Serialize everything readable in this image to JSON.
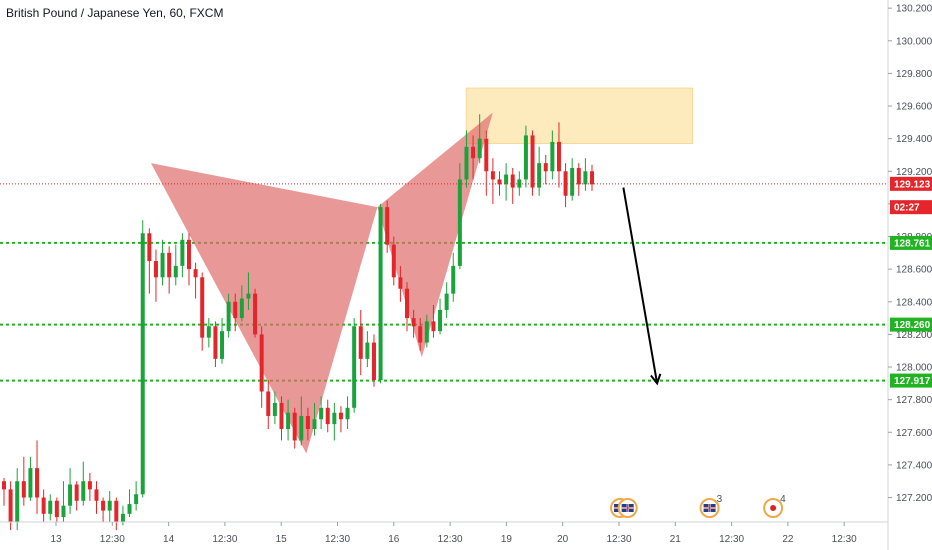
{
  "header": {
    "title": "British Pound / Japanese Yen, 60, FXCM"
  },
  "colors": {
    "up": "#1aa33b",
    "down": "#e4262b",
    "pattern": "#e06c6c",
    "supply_zone": "#fde9b8",
    "level_line": "#22b322",
    "price_line": "#e4262b",
    "arrow": "#000000"
  },
  "chart_data": {
    "type": "candlestick",
    "title": "British Pound / Japanese Yen, 60, FXCM",
    "ylim": [
      127.05,
      130.25
    ],
    "y_ticks": [
      "130.200",
      "130.000",
      "129.800",
      "129.600",
      "129.400",
      "129.200",
      "129.000",
      "128.800",
      "128.600",
      "128.400",
      "128.200",
      "128.000",
      "127.800",
      "127.600",
      "127.400",
      "127.200"
    ],
    "x_ticks": [
      "13",
      "12:30",
      "14",
      "12:30",
      "15",
      "12:30",
      "16",
      "12:30",
      "19",
      "20",
      "12:30",
      "21",
      "12:30",
      "22",
      "12:30"
    ],
    "price_tags": [
      {
        "label": "129.123",
        "value": 129.123,
        "color": "#e4262b"
      },
      {
        "label": "02:27",
        "value": 128.98,
        "color": "#e4262b"
      },
      {
        "label": "128.761",
        "value": 128.761,
        "color": "#22b322"
      },
      {
        "label": "128.260",
        "value": 128.26,
        "color": "#22b322"
      },
      {
        "label": "127.917",
        "value": 127.917,
        "color": "#22b322"
      }
    ],
    "levels": [
      128.761,
      128.26,
      127.917
    ],
    "current_price": 129.123,
    "pattern": {
      "name": "bat",
      "points": [
        [
          0.17,
          129.25
        ],
        [
          0.345,
          127.47
        ],
        [
          0.425,
          128.98
        ],
        [
          0.475,
          128.06
        ],
        [
          0.555,
          129.56
        ]
      ]
    },
    "supply_zone": {
      "x": [
        0.525,
        0.78
      ],
      "y": [
        129.37,
        129.71
      ]
    },
    "arrow": {
      "from": [
        0.702,
        129.1
      ],
      "to": [
        0.74,
        127.9
      ]
    },
    "calendar_events": [
      {
        "icon": "uk-flag",
        "x": 0.81
      },
      {
        "icon": "uk-flag",
        "x": 0.82
      },
      {
        "icon": "uk-flag",
        "x": 0.927,
        "count": "3"
      },
      {
        "icon": "jp-flag",
        "x": 1.01,
        "count": "4"
      }
    ],
    "candles": [
      [
        127.3,
        127.25,
        127.32,
        127.15
      ],
      [
        127.25,
        127.05,
        127.3,
        127.0
      ],
      [
        127.05,
        127.3,
        127.38,
        127.0
      ],
      [
        127.3,
        127.2,
        127.45,
        127.15
      ],
      [
        127.2,
        127.38,
        127.45,
        127.18
      ],
      [
        127.38,
        127.2,
        127.55,
        127.1
      ],
      [
        127.2,
        127.1,
        127.25,
        127.05
      ],
      [
        127.1,
        127.18,
        127.22,
        127.06
      ],
      [
        127.18,
        127.08,
        127.2,
        127.05
      ],
      [
        127.08,
        127.15,
        127.3,
        127.05
      ],
      [
        127.15,
        127.28,
        127.38,
        127.1
      ],
      [
        127.28,
        127.18,
        127.3,
        127.12
      ],
      [
        127.18,
        127.3,
        127.42,
        127.15
      ],
      [
        127.3,
        127.25,
        127.35,
        127.18
      ],
      [
        127.25,
        127.18,
        127.3,
        127.1
      ],
      [
        127.18,
        127.12,
        127.2,
        127.05
      ],
      [
        127.12,
        127.18,
        127.24,
        127.05
      ],
      [
        127.18,
        127.05,
        127.2,
        127.0
      ],
      [
        127.05,
        127.1,
        127.15,
        127.03
      ],
      [
        127.1,
        127.16,
        127.25,
        127.08
      ],
      [
        127.16,
        127.22,
        127.3,
        127.12
      ],
      [
        127.22,
        128.82,
        128.9,
        127.2
      ],
      [
        128.82,
        128.65,
        128.85,
        128.45
      ],
      [
        128.65,
        128.55,
        128.72,
        128.4
      ],
      [
        128.55,
        128.7,
        128.78,
        128.5
      ],
      [
        128.7,
        128.55,
        128.74,
        128.45
      ],
      [
        128.55,
        128.62,
        128.75,
        128.5
      ],
      [
        128.62,
        128.78,
        128.82,
        128.55
      ],
      [
        128.78,
        128.6,
        128.82,
        128.5
      ],
      [
        128.6,
        128.55,
        128.64,
        128.42
      ],
      [
        128.55,
        128.18,
        128.58,
        128.1
      ],
      [
        128.18,
        128.25,
        128.3,
        128.12
      ],
      [
        128.25,
        128.05,
        128.28,
        128.0
      ],
      [
        128.05,
        128.22,
        128.3,
        128.02
      ],
      [
        128.22,
        128.4,
        128.45,
        128.18
      ],
      [
        128.4,
        128.3,
        128.45,
        128.22
      ],
      [
        128.3,
        128.42,
        128.5,
        128.28
      ],
      [
        128.42,
        128.45,
        128.58,
        128.35
      ],
      [
        128.45,
        128.2,
        128.48,
        128.18
      ],
      [
        128.2,
        127.85,
        128.25,
        127.75
      ],
      [
        127.85,
        127.7,
        127.92,
        127.62
      ],
      [
        127.7,
        127.78,
        127.85,
        127.65
      ],
      [
        127.78,
        127.62,
        127.82,
        127.55
      ],
      [
        127.62,
        127.72,
        127.8,
        127.55
      ],
      [
        127.72,
        127.55,
        127.75,
        127.5
      ],
      [
        127.55,
        127.7,
        127.82,
        127.52
      ],
      [
        127.7,
        127.62,
        127.75,
        127.55
      ],
      [
        127.62,
        127.68,
        127.78,
        127.58
      ],
      [
        127.68,
        127.75,
        127.82,
        127.62
      ],
      [
        127.75,
        127.65,
        127.8,
        127.6
      ],
      [
        127.65,
        127.72,
        127.78,
        127.55
      ],
      [
        127.72,
        127.68,
        127.76,
        127.6
      ],
      [
        127.68,
        127.75,
        127.82,
        127.62
      ],
      [
        127.75,
        128.25,
        128.3,
        127.72
      ],
      [
        128.25,
        128.05,
        128.35,
        127.95
      ],
      [
        128.05,
        128.15,
        128.22,
        128.0
      ],
      [
        128.15,
        127.92,
        128.2,
        127.88
      ],
      [
        127.92,
        128.98,
        129.0,
        127.9
      ],
      [
        128.98,
        128.75,
        129.02,
        128.7
      ],
      [
        128.75,
        128.55,
        128.8,
        128.5
      ],
      [
        128.55,
        128.48,
        128.62,
        128.4
      ],
      [
        128.48,
        128.3,
        128.52,
        128.22
      ],
      [
        128.3,
        128.25,
        128.35,
        128.18
      ],
      [
        128.25,
        128.15,
        128.3,
        128.1
      ],
      [
        128.15,
        128.28,
        128.32,
        128.12
      ],
      [
        128.28,
        128.22,
        128.38,
        128.18
      ],
      [
        128.22,
        128.35,
        128.42,
        128.2
      ],
      [
        128.35,
        128.45,
        128.52,
        128.3
      ],
      [
        128.45,
        128.62,
        128.7,
        128.4
      ],
      [
        128.62,
        129.15,
        129.25,
        128.6
      ],
      [
        129.15,
        129.35,
        129.45,
        129.1
      ],
      [
        129.35,
        129.28,
        129.42,
        129.15
      ],
      [
        129.28,
        129.4,
        129.55,
        129.25
      ],
      [
        129.4,
        129.2,
        129.45,
        129.05
      ],
      [
        129.2,
        129.15,
        129.28,
        129.0
      ],
      [
        129.15,
        129.12,
        129.2,
        129.05
      ],
      [
        129.12,
        129.18,
        129.25,
        129.02
      ],
      [
        129.18,
        129.1,
        129.22,
        129.0
      ],
      [
        129.1,
        129.15,
        129.2,
        129.05
      ],
      [
        129.15,
        129.42,
        129.48,
        129.1
      ],
      [
        129.42,
        129.1,
        129.45,
        129.05
      ],
      [
        129.1,
        129.25,
        129.35,
        129.05
      ],
      [
        129.25,
        129.2,
        129.3,
        129.12
      ],
      [
        129.2,
        129.38,
        129.45,
        129.15
      ],
      [
        129.38,
        129.2,
        129.5,
        129.1
      ],
      [
        129.2,
        129.05,
        129.25,
        128.98
      ],
      [
        129.05,
        129.22,
        129.28,
        129.02
      ],
      [
        129.22,
        129.12,
        129.25,
        129.05
      ],
      [
        129.12,
        129.2,
        129.28,
        129.08
      ],
      [
        129.2,
        129.12,
        129.24,
        129.08
      ]
    ]
  }
}
